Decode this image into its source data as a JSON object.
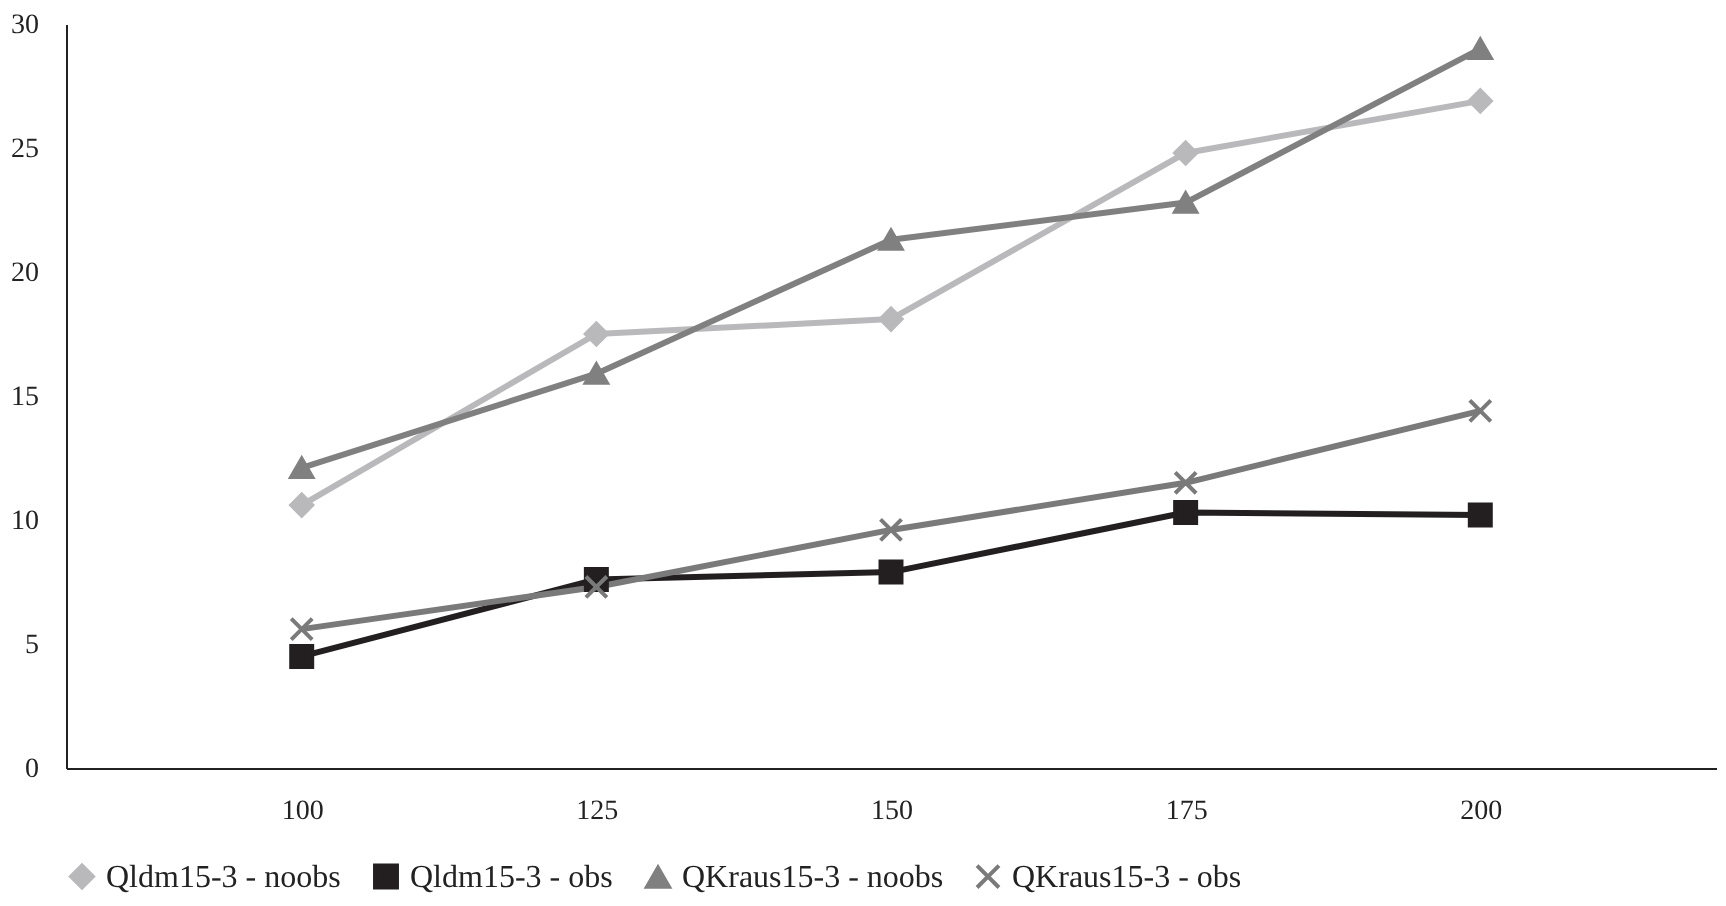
{
  "chart_data": {
    "type": "line",
    "categories": [
      "100",
      "125",
      "150",
      "175",
      "200"
    ],
    "series": [
      {
        "name": "Qldm15-3 - noobs",
        "color": "#b9b9bb",
        "marker": "diamond",
        "values": [
          10.6,
          17.5,
          18.1,
          24.8,
          26.9
        ]
      },
      {
        "name": "Qldm15-3 - obs",
        "color": "#231f20",
        "marker": "square",
        "values": [
          4.5,
          7.6,
          7.9,
          10.3,
          10.2
        ]
      },
      {
        "name": "QKraus15-3 - noobs",
        "color": "#808080",
        "marker": "triangle",
        "values": [
          12.1,
          15.9,
          21.3,
          22.8,
          29.0
        ]
      },
      {
        "name": "QKraus15-3 - obs",
        "color": "#7a7a7a",
        "marker": "cross",
        "values": [
          5.6,
          7.3,
          9.6,
          11.5,
          14.4
        ]
      }
    ],
    "ylim": [
      0,
      30
    ],
    "yticks": [
      0,
      5,
      10,
      15,
      20,
      25,
      30
    ],
    "grid": false,
    "legend": "bottom",
    "line_style": "solid"
  }
}
